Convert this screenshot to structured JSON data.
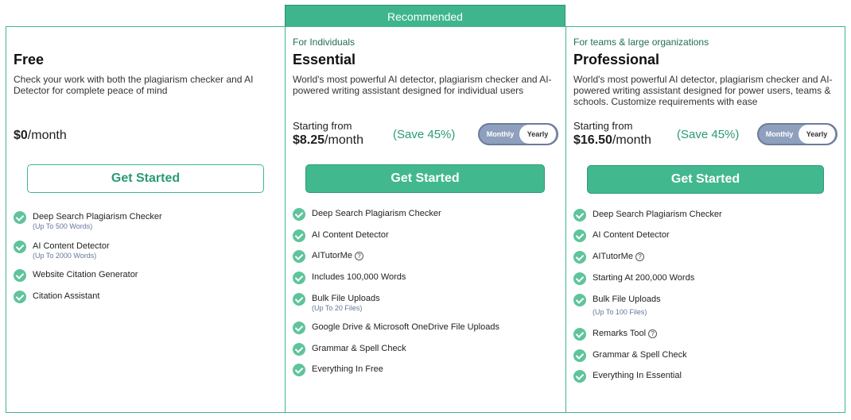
{
  "recommended_label": "Recommended",
  "plans": [
    {
      "audience": "",
      "name": "Free",
      "description": "Check your work with both the plagiarism checker and AI Detector for complete peace of mind",
      "price_label": "",
      "price": "$0",
      "period": "/month",
      "cta": "Get Started",
      "features": [
        {
          "text": "Deep Search Plagiarism Checker",
          "sub": "(Up To 500 Words)"
        },
        {
          "text": "AI Content Detector",
          "sub": "(Up To 2000 Words)"
        },
        {
          "text": "Website Citation Generator",
          "sub": ""
        },
        {
          "text": "Citation Assistant",
          "sub": ""
        }
      ]
    },
    {
      "audience": "For Individuals",
      "name": "Essential",
      "description": "World's most powerful AI detector, plagiarism checker and AI-powered writing assistant designed for individual users",
      "price_label": "Starting from",
      "price": "$8.25",
      "period": "/month",
      "save": "(Save 45%)",
      "toggle": {
        "monthly": "Monthly",
        "yearly": "Yearly",
        "selected": "Yearly"
      },
      "cta": "Get Started",
      "features": [
        {
          "text": "Deep Search Plagiarism Checker",
          "sub": ""
        },
        {
          "text": "AI Content Detector",
          "sub": ""
        },
        {
          "text": "AITutorMe",
          "sub": "",
          "help": "?"
        },
        {
          "text": "Includes 100,000 Words",
          "sub": ""
        },
        {
          "text": "Bulk File Uploads",
          "sub": "(Up To 20 Files)"
        },
        {
          "text": "Google Drive & Microsoft OneDrive File Uploads",
          "sub": ""
        },
        {
          "text": "Grammar & Spell Check",
          "sub": ""
        },
        {
          "text": "Everything In Free",
          "sub": ""
        }
      ]
    },
    {
      "audience": "For teams & large organizations",
      "name": "Professional",
      "description": "World's most powerful AI detector, plagiarism checker and AI-powered writing assistant designed for power users, teams & schools. Customize requirements with ease",
      "price_label": "Starting from",
      "price": "$16.50",
      "period": "/month",
      "save": "(Save 45%)",
      "toggle": {
        "monthly": "Monthly",
        "yearly": "Yearly",
        "selected": "Yearly"
      },
      "cta": "Get Started",
      "features": [
        {
          "text": "Deep Search Plagiarism Checker",
          "sub": ""
        },
        {
          "text": "AI Content Detector",
          "sub": ""
        },
        {
          "text": "AITutorMe",
          "sub": "",
          "help": "?"
        },
        {
          "text": "Starting At 200,000 Words",
          "sub": ""
        },
        {
          "text": "Bulk File Uploads",
          "sub": "(Up To 100 Files)"
        },
        {
          "text": "Remarks Tool",
          "sub": "",
          "help": "?"
        },
        {
          "text": "Grammar & Spell Check",
          "sub": ""
        },
        {
          "text": "Everything In Essential",
          "sub": ""
        }
      ]
    }
  ],
  "colors": {
    "accent": "#3fb58e",
    "accent_dark": "#2a9a73",
    "toggle_bg": "#8fa0be"
  },
  "icons": {
    "check": "check-circle-icon",
    "help": "question-circle-icon"
  }
}
